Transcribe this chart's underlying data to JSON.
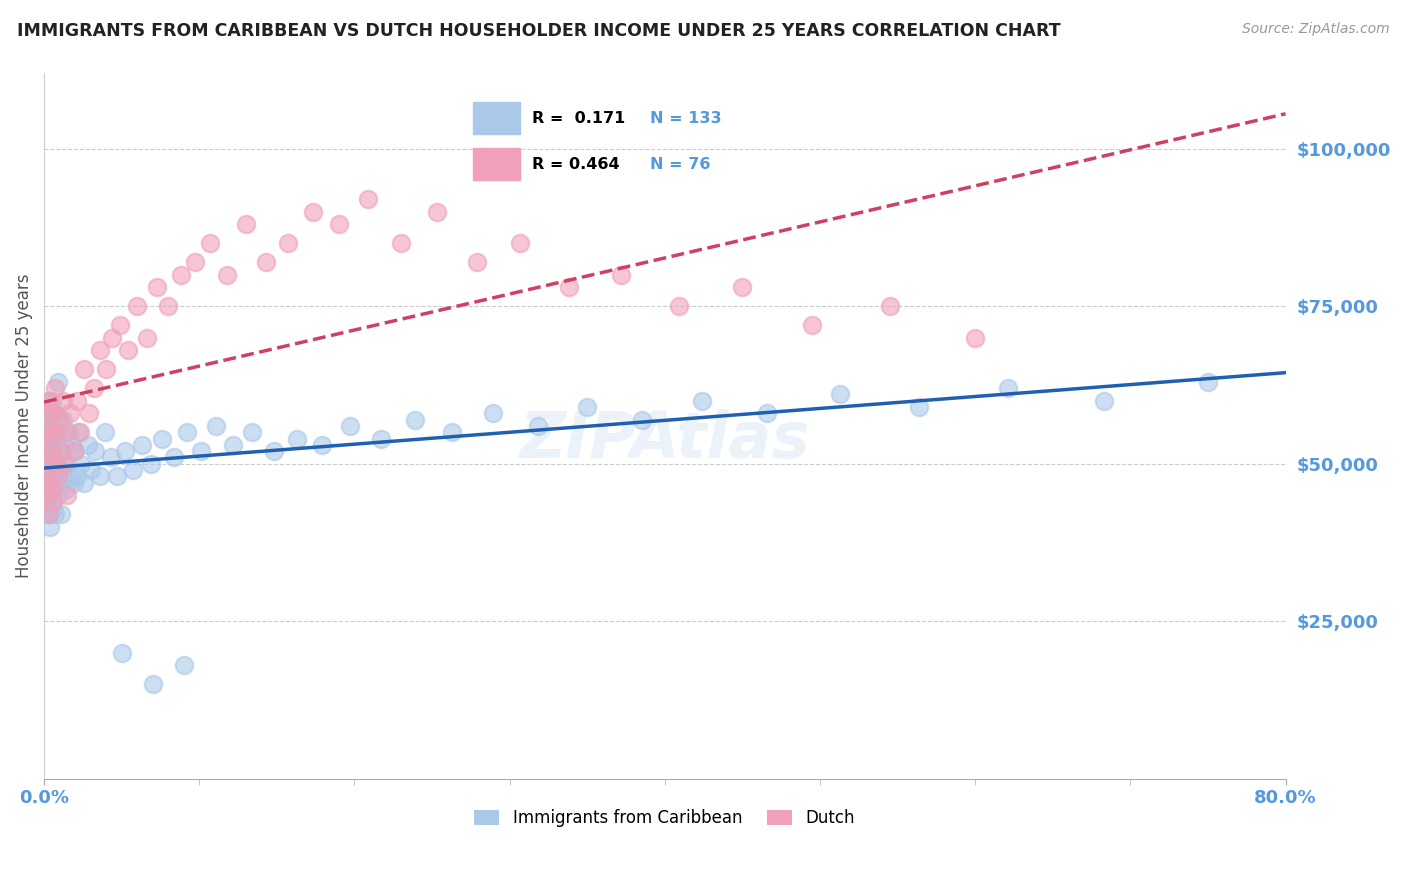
{
  "title": "IMMIGRANTS FROM CARIBBEAN VS DUTCH HOUSEHOLDER INCOME UNDER 25 YEARS CORRELATION CHART",
  "source_text": "Source: ZipAtlas.com",
  "ylabel": "Householder Income Under 25 years",
  "xlim": [
    0.0,
    0.8
  ],
  "ylim": [
    0,
    112000
  ],
  "yticks": [
    25000,
    50000,
    75000,
    100000
  ],
  "ytick_labels": [
    "$25,000",
    "$50,000",
    "$75,000",
    "$100,000"
  ],
  "series_caribbean": {
    "name": "Immigrants from Caribbean",
    "R": "0.171",
    "N": "133",
    "dot_color": "#aac8e8",
    "line_color": "#2060b0",
    "line_style": "solid",
    "x": [
      0.001,
      0.001,
      0.001,
      0.002,
      0.002,
      0.002,
      0.002,
      0.002,
      0.003,
      0.003,
      0.003,
      0.003,
      0.003,
      0.004,
      0.004,
      0.004,
      0.004,
      0.005,
      0.005,
      0.005,
      0.005,
      0.006,
      0.006,
      0.006,
      0.006,
      0.007,
      0.007,
      0.007,
      0.007,
      0.008,
      0.008,
      0.008,
      0.009,
      0.009,
      0.009,
      0.01,
      0.01,
      0.01,
      0.011,
      0.011,
      0.012,
      0.012,
      0.013,
      0.014,
      0.015,
      0.016,
      0.017,
      0.018,
      0.019,
      0.02,
      0.021,
      0.022,
      0.024,
      0.026,
      0.028,
      0.03,
      0.033,
      0.036,
      0.039,
      0.043,
      0.047,
      0.052,
      0.057,
      0.063,
      0.069,
      0.076,
      0.084,
      0.092,
      0.101,
      0.111,
      0.122,
      0.134,
      0.148,
      0.163,
      0.179,
      0.197,
      0.217,
      0.239,
      0.263,
      0.289,
      0.318,
      0.35,
      0.385,
      0.424,
      0.466,
      0.513,
      0.564,
      0.621,
      0.683,
      0.75,
      0.05,
      0.07,
      0.09
    ],
    "y": [
      50000,
      55000,
      45000,
      52000,
      48000,
      60000,
      43000,
      57000,
      50000,
      46000,
      54000,
      42000,
      58000,
      47000,
      53000,
      40000,
      56000,
      49000,
      45000,
      54000,
      60000,
      52000,
      47000,
      55000,
      43000,
      50000,
      46000,
      58000,
      42000,
      53000,
      48000,
      57000,
      45000,
      51000,
      63000,
      49000,
      55000,
      47000,
      52000,
      42000,
      57000,
      48000,
      53000,
      46000,
      50000,
      55000,
      48000,
      53000,
      47000,
      52000,
      48000,
      55000,
      50000,
      47000,
      53000,
      49000,
      52000,
      48000,
      55000,
      51000,
      48000,
      52000,
      49000,
      53000,
      50000,
      54000,
      51000,
      55000,
      52000,
      56000,
      53000,
      55000,
      52000,
      54000,
      53000,
      56000,
      54000,
      57000,
      55000,
      58000,
      56000,
      59000,
      57000,
      60000,
      58000,
      61000,
      59000,
      62000,
      60000,
      63000,
      20000,
      15000,
      18000
    ]
  },
  "series_dutch": {
    "name": "Dutch",
    "R": "0.464",
    "N": "76",
    "dot_color": "#f0a0b8",
    "line_color": "#d04060",
    "line_style": "dashed",
    "x": [
      0.001,
      0.001,
      0.002,
      0.002,
      0.002,
      0.003,
      0.003,
      0.003,
      0.004,
      0.004,
      0.005,
      0.005,
      0.006,
      0.006,
      0.007,
      0.007,
      0.008,
      0.009,
      0.01,
      0.011,
      0.012,
      0.013,
      0.014,
      0.015,
      0.017,
      0.019,
      0.021,
      0.023,
      0.026,
      0.029,
      0.032,
      0.036,
      0.04,
      0.044,
      0.049,
      0.054,
      0.06,
      0.066,
      0.073,
      0.08,
      0.088,
      0.097,
      0.107,
      0.118,
      0.13,
      0.143,
      0.157,
      0.173,
      0.19,
      0.209,
      0.23,
      0.253,
      0.279,
      0.307,
      0.338,
      0.372,
      0.409,
      0.45,
      0.495,
      0.545,
      0.6
    ],
    "y": [
      50000,
      48000,
      55000,
      45000,
      52000,
      58000,
      42000,
      60000,
      47000,
      55000,
      52000,
      46000,
      58000,
      44000,
      62000,
      50000,
      55000,
      48000,
      57000,
      52000,
      60000,
      50000,
      55000,
      45000,
      58000,
      52000,
      60000,
      55000,
      65000,
      58000,
      62000,
      68000,
      65000,
      70000,
      72000,
      68000,
      75000,
      70000,
      78000,
      75000,
      80000,
      82000,
      85000,
      80000,
      88000,
      82000,
      85000,
      90000,
      88000,
      92000,
      85000,
      90000,
      82000,
      85000,
      78000,
      80000,
      75000,
      78000,
      72000,
      75000,
      70000
    ]
  },
  "legend_box_color_caribbean": "#aac8e8",
  "legend_box_color_dutch": "#f0a0b8",
  "legend_R_caribbean": "0.171",
  "legend_N_caribbean": "133",
  "legend_R_dutch": "0.464",
  "legend_N_dutch": "76",
  "watermark_text": "ZIPAtlas",
  "grid_color": "#cccccc",
  "background_color": "#ffffff",
  "title_color": "#222222",
  "axis_value_color": "#5599dd",
  "source_color": "#999999"
}
